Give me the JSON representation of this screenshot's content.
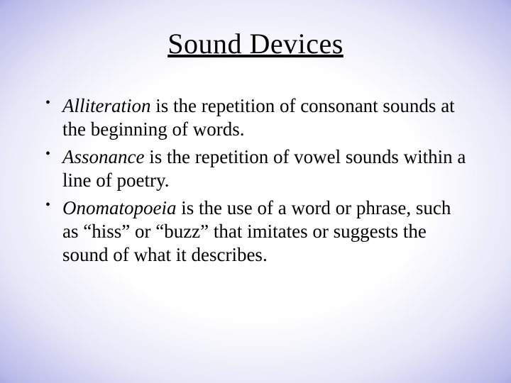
{
  "slide": {
    "title": "Sound Devices",
    "bullets": [
      {
        "term": "Alliteration",
        "rest": " is the repetition of consonant sounds at the beginning of words."
      },
      {
        "term": "Assonance",
        "rest": " is the repetition of vowel sounds within a line of poetry."
      },
      {
        "term": "Onomatopoeia",
        "rest": " is the use of a word or phrase, such as “hiss” or “buzz” that imitates or suggests the sound of what it describes."
      }
    ],
    "style": {
      "title_fontsize": 40,
      "body_fontsize": 27,
      "text_color": "#000000",
      "gradient_inner": "#ffffff",
      "gradient_outer": "#3838b0",
      "font_family": "Garamond"
    }
  }
}
